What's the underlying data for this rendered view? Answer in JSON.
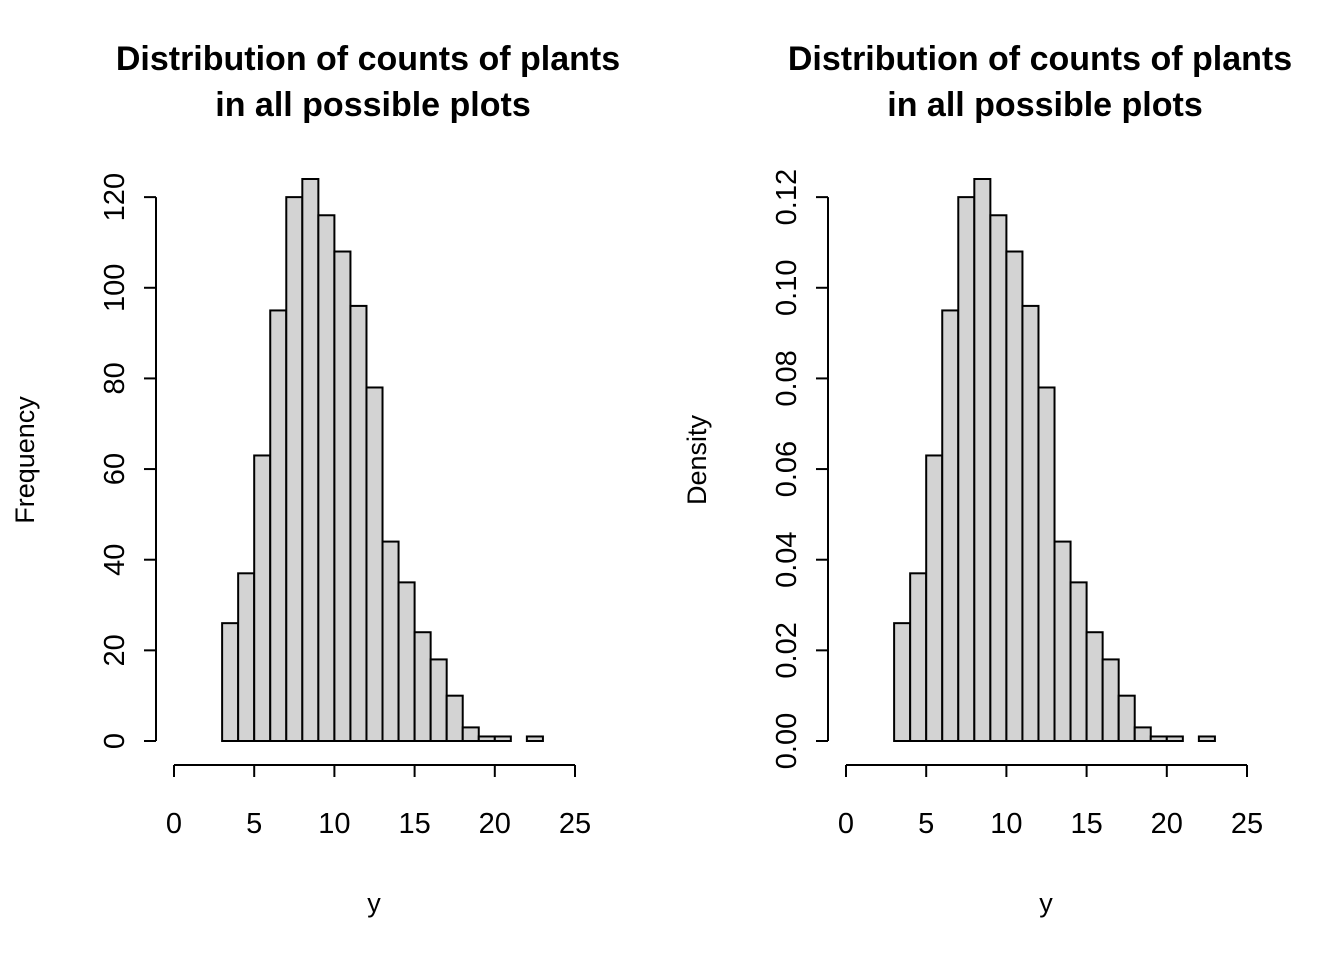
{
  "chart_data": [
    {
      "type": "bar",
      "title": [
        "Distribution of counts of plants",
        "in all possible plots"
      ],
      "xlabel": "y",
      "ylabel": "Frequency",
      "bin_edges": [
        3,
        4,
        5,
        6,
        7,
        8,
        9,
        10,
        11,
        12,
        13,
        14,
        15,
        16,
        17,
        18,
        19,
        20,
        21,
        22,
        23
      ],
      "values": [
        26,
        37,
        63,
        95,
        120,
        124,
        116,
        108,
        96,
        78,
        44,
        35,
        24,
        18,
        10,
        3,
        1,
        1,
        0,
        1
      ],
      "xlim": [
        0,
        25
      ],
      "ylim": [
        0,
        124
      ],
      "x_ticks": [
        0,
        5,
        10,
        15,
        20,
        25
      ],
      "x_tick_labels": [
        "0",
        "5",
        "10",
        "15",
        "20",
        "25"
      ],
      "y_ticks": [
        0,
        20,
        40,
        60,
        80,
        100,
        120
      ],
      "y_tick_labels": [
        "0",
        "20",
        "40",
        "60",
        "80",
        "100",
        "120"
      ],
      "bar_color": "#d3d3d3",
      "grid": false
    },
    {
      "type": "bar",
      "title": [
        "Distribution of counts of plants",
        "in all possible plots"
      ],
      "xlabel": "y",
      "ylabel": "Density",
      "bin_edges": [
        3,
        4,
        5,
        6,
        7,
        8,
        9,
        10,
        11,
        12,
        13,
        14,
        15,
        16,
        17,
        18,
        19,
        20,
        21,
        22,
        23
      ],
      "values": [
        0.026,
        0.037,
        0.063,
        0.095,
        0.12,
        0.124,
        0.116,
        0.108,
        0.096,
        0.078,
        0.044,
        0.035,
        0.024,
        0.018,
        0.01,
        0.003,
        0.001,
        0.001,
        0.0,
        0.001
      ],
      "xlim": [
        0,
        25
      ],
      "ylim": [
        0,
        0.124
      ],
      "x_ticks": [
        0,
        5,
        10,
        15,
        20,
        25
      ],
      "x_tick_labels": [
        "0",
        "5",
        "10",
        "15",
        "20",
        "25"
      ],
      "y_ticks": [
        0,
        0.02,
        0.04,
        0.06,
        0.08,
        0.1,
        0.12
      ],
      "y_tick_labels": [
        "0.00",
        "0.02",
        "0.04",
        "0.06",
        "0.08",
        "0.10",
        "0.12"
      ],
      "bar_color": "#d3d3d3",
      "grid": false
    }
  ]
}
